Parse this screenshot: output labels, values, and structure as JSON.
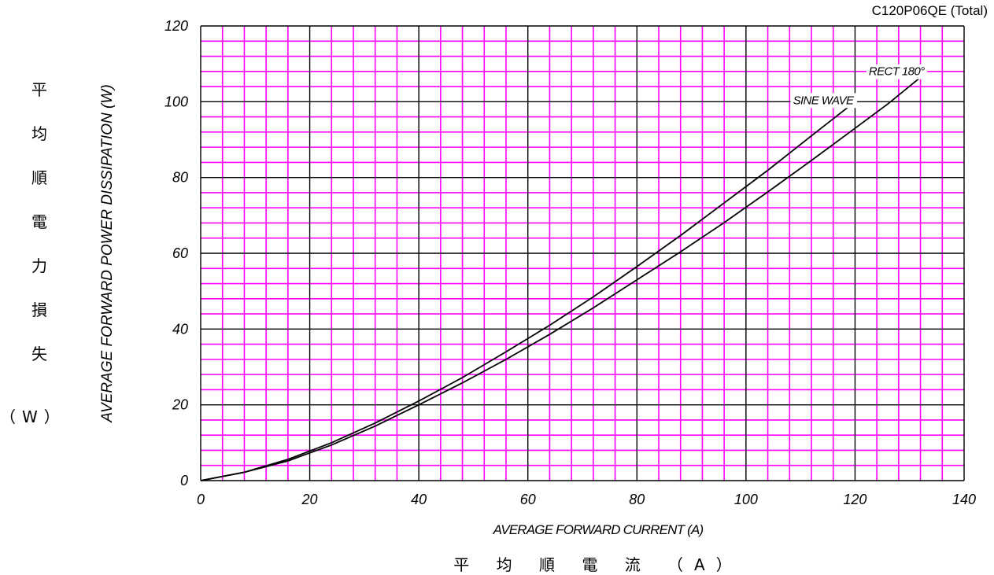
{
  "chart_data": {
    "type": "line",
    "title": "C120P06QE (Total)",
    "xlabel": "AVERAGE FORWARD CURRENT (A)",
    "ylabel": "AVERAGE FORWARD POWER DISSIPATION (W)",
    "xlabel_cjk": "平 均 順 電 流 （A）",
    "ylabel_cjk_chars": [
      "平",
      "均",
      "順",
      "電",
      "力",
      "損",
      "失"
    ],
    "ylabel_cjk_unit": "（W）",
    "xlim": [
      0,
      140
    ],
    "ylim": [
      0,
      120
    ],
    "x_ticks": [
      "0",
      "20",
      "40",
      "60",
      "80",
      "100",
      "120",
      "140"
    ],
    "y_ticks": [
      "0",
      "20",
      "40",
      "60",
      "80",
      "100",
      "120"
    ],
    "grid": true,
    "series": [
      {
        "name": "SINE WAVE",
        "x": [
          0,
          8,
          16,
          24,
          32,
          40,
          48,
          56,
          64,
          72,
          80,
          88,
          96,
          104,
          112,
          120
        ],
        "y": [
          0,
          2.2,
          5.6,
          10.0,
          15.2,
          21.0,
          27.2,
          34.0,
          41.0,
          48.5,
          56.5,
          64.7,
          73.3,
          81.9,
          91.0,
          100.0
        ]
      },
      {
        "name": "RECT 180°",
        "x": [
          0,
          8,
          16,
          24,
          32,
          40,
          48,
          56,
          64,
          72,
          80,
          88,
          96,
          104,
          112,
          120,
          126,
          133
        ],
        "y": [
          0,
          2.2,
          5.2,
          9.4,
          14.4,
          20.0,
          25.8,
          32.0,
          38.6,
          45.6,
          53.0,
          60.4,
          68.1,
          76.2,
          84.5,
          93.0,
          99.4,
          107.6
        ]
      }
    ],
    "annotations": [
      {
        "text": "SINE WAVE",
        "series": "SINE WAVE"
      },
      {
        "text": "RECT 180°",
        "series": "RECT 180°"
      }
    ]
  },
  "colors": {
    "grid_minor": "#ff00ff",
    "grid_major": "#000000",
    "curve": "#000000"
  }
}
